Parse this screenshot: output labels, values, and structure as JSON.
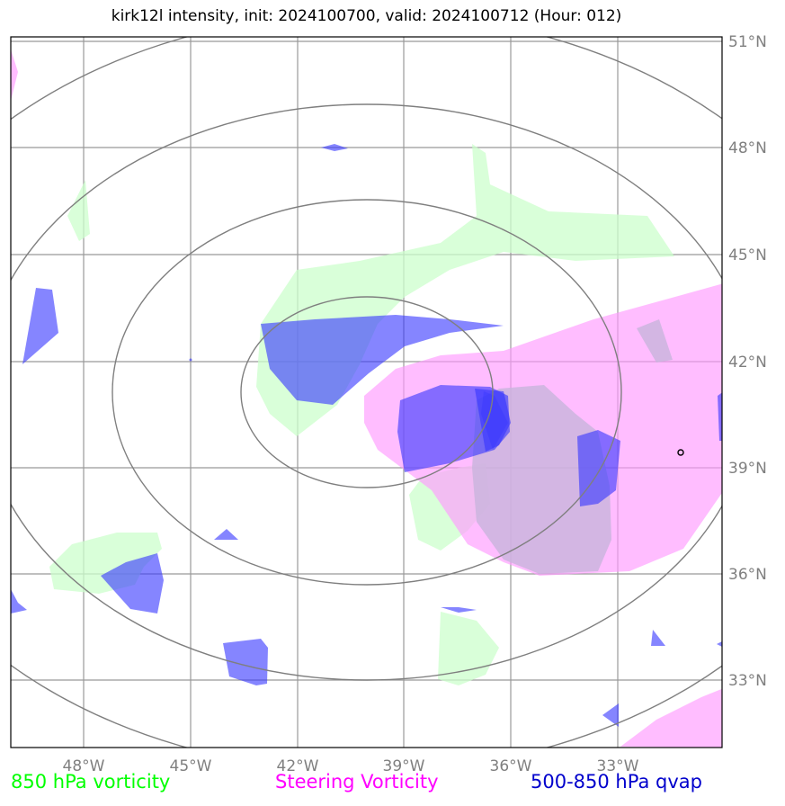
{
  "title": "kirk12l intensity, init: 2024100700, valid: 2024100712 (Hour: 012)",
  "x_ticks": [
    "48°W",
    "45°W",
    "42°W",
    "39°W",
    "36°W",
    "33°W"
  ],
  "y_ticks": [
    "51°N",
    "48°N",
    "45°N",
    "42°N",
    "39°N",
    "36°N",
    "33°N"
  ],
  "legend": {
    "vort850": "850 hPa vorticity",
    "steering": "Steering Vorticity",
    "qvap": "500-850 hPa qvap"
  },
  "colors": {
    "vort850": "#ccffcc",
    "steering": "#ff99ff",
    "qvap": "#3333ff",
    "grid": "#999999",
    "rings": "#7f7f7f"
  }
}
